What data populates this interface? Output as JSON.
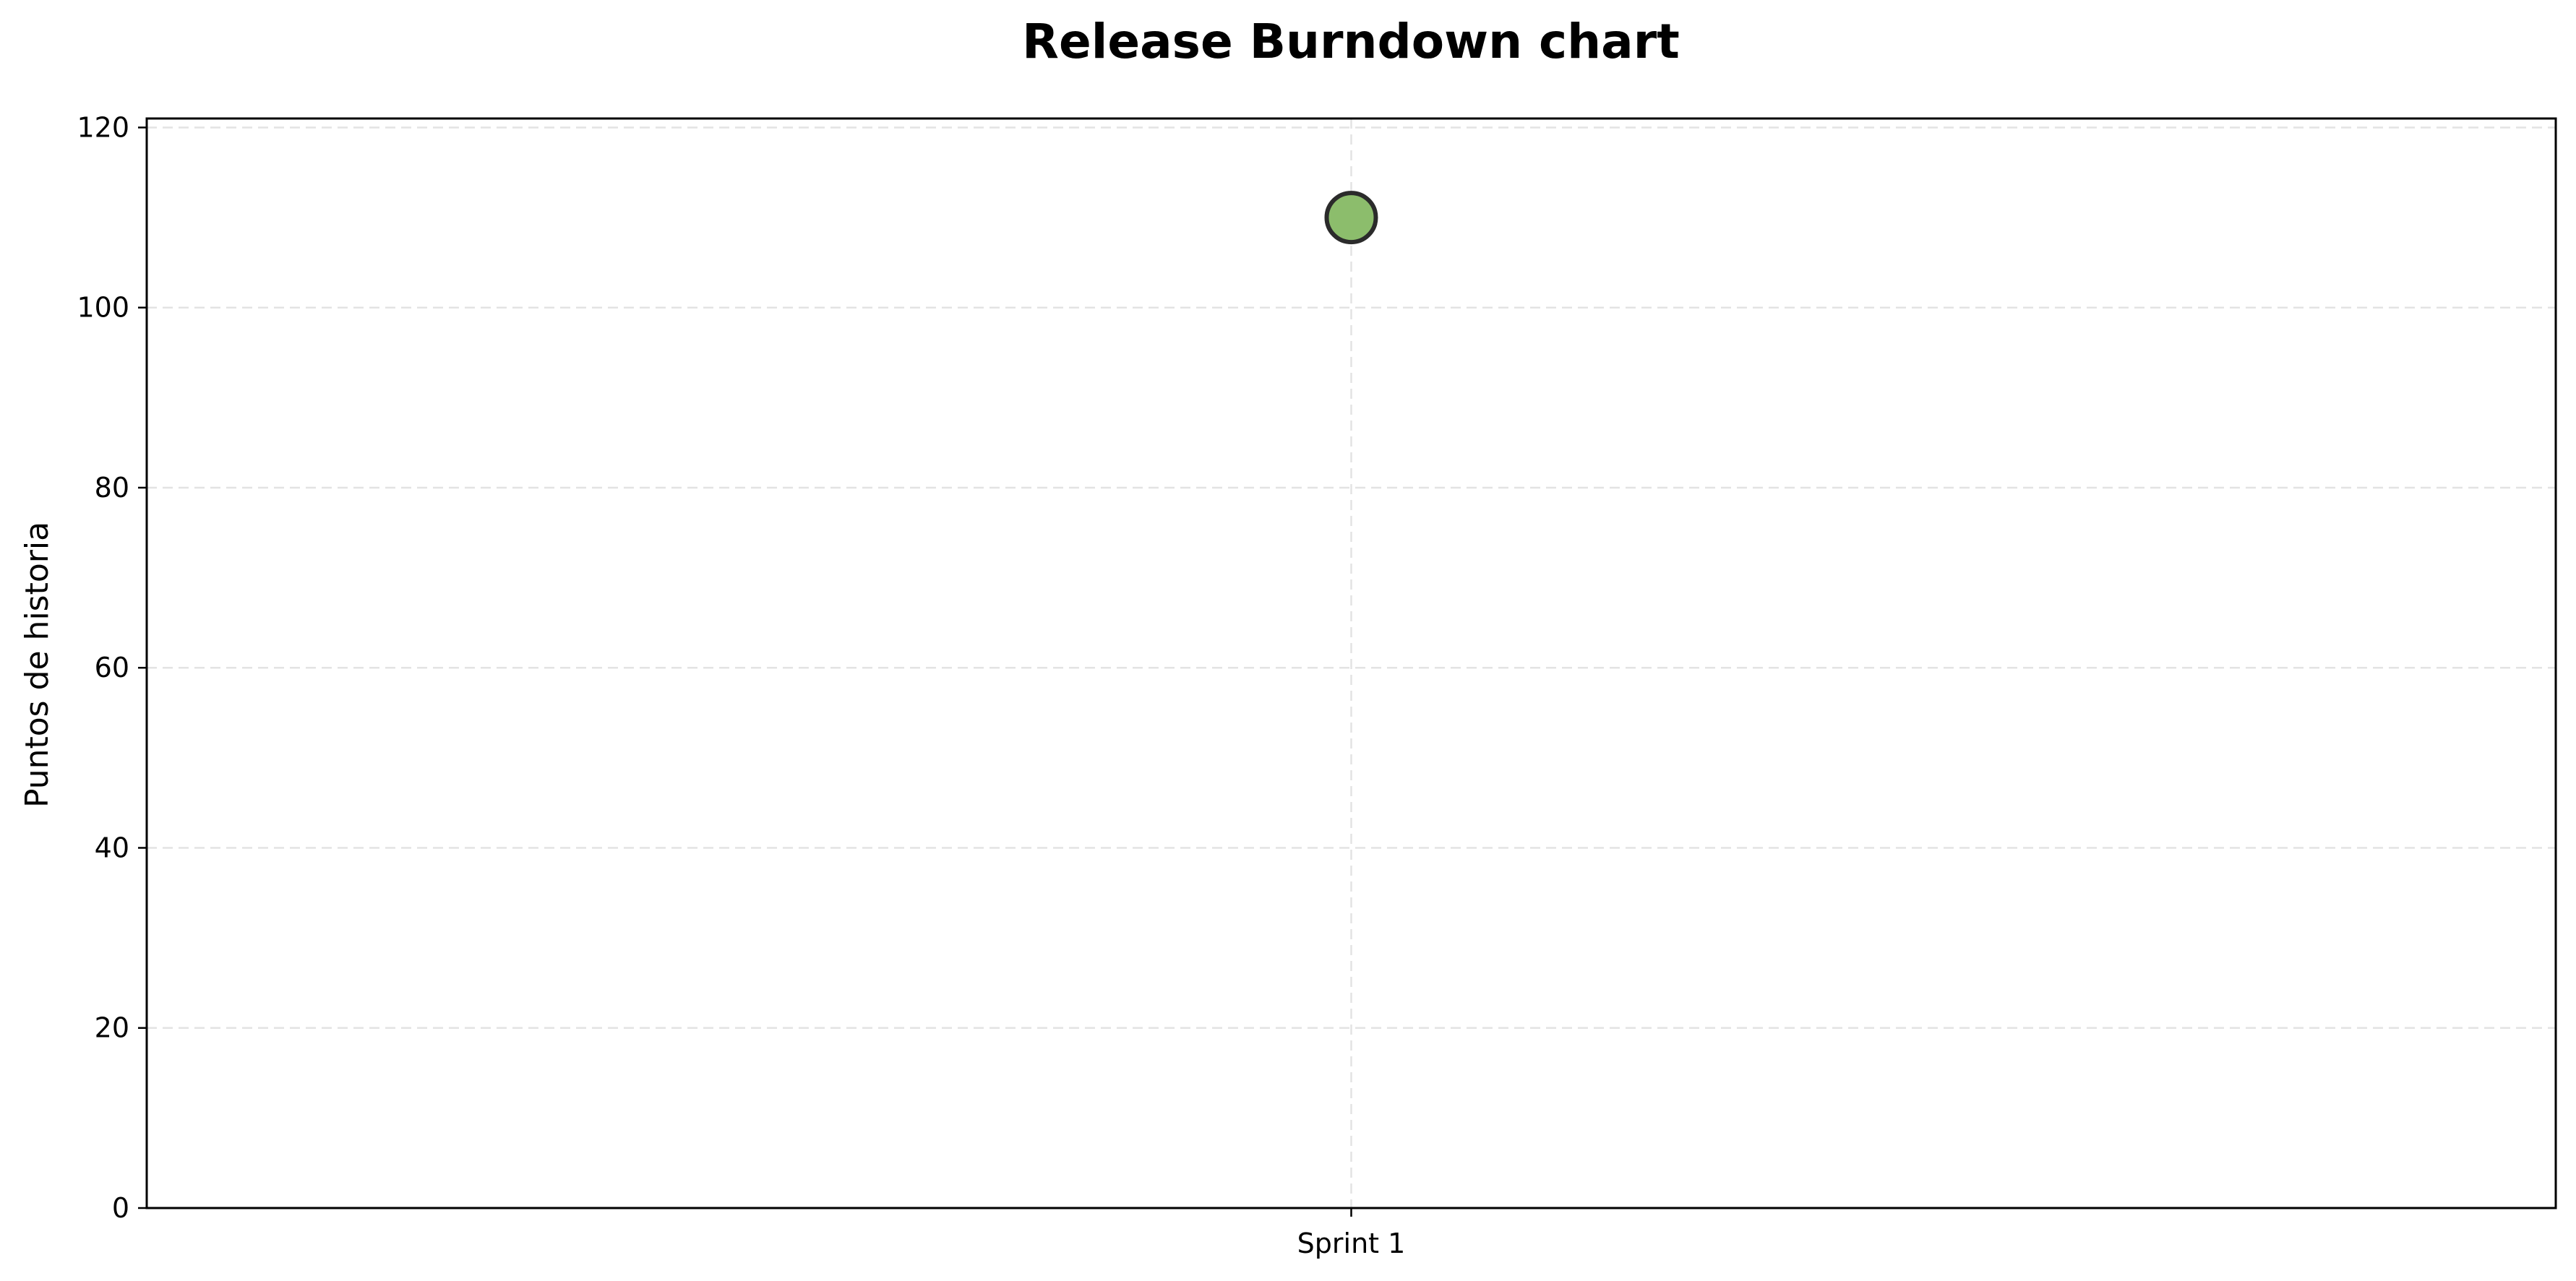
{
  "chart_data": {
    "type": "scatter",
    "title": "Release Burndown chart",
    "xlabel": "",
    "ylabel": "Puntos de historia",
    "categories": [
      "Sprint 1"
    ],
    "series": [
      {
        "values": [
          110
        ],
        "color": "#8cbd6c",
        "edge_color": "#2b2b2b"
      }
    ],
    "ylim": [
      0,
      121
    ],
    "yticks": [
      0,
      20,
      40,
      60,
      80,
      100,
      120
    ],
    "grid": true,
    "legend": "none"
  }
}
